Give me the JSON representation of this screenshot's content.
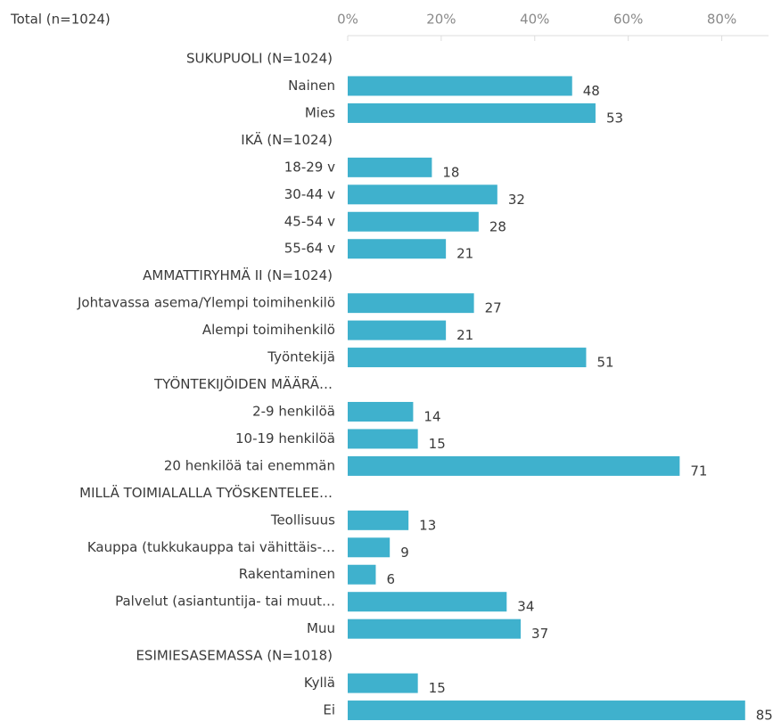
{
  "chart_data": {
    "type": "bar",
    "orientation": "horizontal",
    "title": "Total (n=1024)",
    "categories": [
      "SUKUPUOLI (N=1024)",
      "Nainen",
      "Mies",
      "IKÄ (N=1024)",
      "18-29 v",
      "30-44 v",
      "45-54 v",
      "55-64 v",
      "AMMATTIRYHMÄ II (N=1024)",
      "Johtavassa asema/Ylempi toimihenkilö",
      "Alempi toimihenkilö",
      "Työntekijä",
      "TYÖNTEKIJÖIDEN MÄÄRÄ…",
      "2-9 henkilöä",
      "10-19 henkilöä",
      "20 henkilöä tai enemmän",
      "MILLÄ TOIMIALALLA TYÖSKENTELEE…",
      "Teollisuus",
      "Kauppa  (tukkukauppa tai vähittäis-…",
      "Rakentaminen",
      "Palvelut (asiantuntija- tai muut…",
      "Muu",
      "ESIMIESASEMASSA (N=1018)",
      "Kyllä",
      "Ei"
    ],
    "values": [
      null,
      48,
      53,
      null,
      18,
      32,
      28,
      21,
      null,
      27,
      21,
      51,
      null,
      14,
      15,
      71,
      null,
      13,
      9,
      6,
      34,
      37,
      null,
      15,
      85
    ],
    "color": "#3fb1cd",
    "xlim": [
      0,
      90
    ],
    "xticks": [
      {
        "value": 0,
        "label": "0%"
      },
      {
        "value": 20,
        "label": "20%"
      },
      {
        "value": 40,
        "label": "40%"
      },
      {
        "value": 60,
        "label": "60%"
      },
      {
        "value": 80,
        "label": "80%"
      }
    ]
  }
}
